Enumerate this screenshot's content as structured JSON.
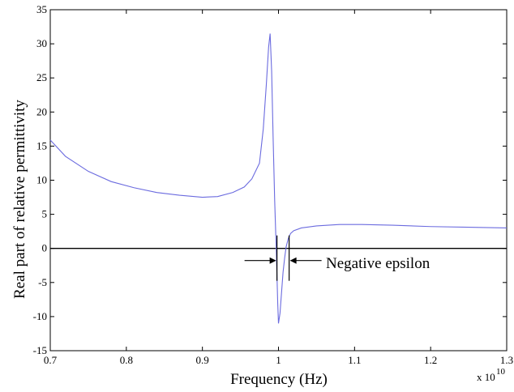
{
  "chart_data": {
    "type": "line",
    "title": "",
    "xlabel": "Frequency (Hz)",
    "ylabel": "Real part of relative permittivity",
    "x_multiplier_label": "x 10",
    "x_multiplier_exponent": "10",
    "xlim": [
      0.7,
      1.3
    ],
    "ylim": [
      -15,
      35
    ],
    "xticks": [
      0.7,
      0.8,
      0.9,
      1.0,
      1.1,
      1.2,
      1.3
    ],
    "xtick_labels": [
      "0.7",
      "0.8",
      "0.9",
      "1",
      "1.1",
      "1.2",
      "1.3"
    ],
    "yticks": [
      -15,
      -10,
      -5,
      0,
      5,
      10,
      15,
      20,
      25,
      30,
      35
    ],
    "ytick_labels": [
      "-15",
      "-10",
      "-5",
      "0",
      "5",
      "10",
      "15",
      "20",
      "25",
      "30",
      "35"
    ],
    "grid": false,
    "series": [
      {
        "color": "#6b6bdf",
        "x": [
          0.7,
          0.72,
          0.75,
          0.78,
          0.81,
          0.84,
          0.87,
          0.9,
          0.92,
          0.94,
          0.955,
          0.965,
          0.975,
          0.98,
          0.984,
          0.987,
          0.989,
          0.991,
          0.993,
          0.995,
          0.997,
          0.999,
          1.0,
          1.002,
          1.004,
          1.006,
          1.008,
          1.01,
          1.013,
          1.016,
          1.02,
          1.03,
          1.05,
          1.08,
          1.11,
          1.15,
          1.2,
          1.25,
          1.3
        ],
        "y": [
          15.9,
          13.5,
          11.3,
          9.8,
          8.9,
          8.2,
          7.8,
          7.5,
          7.6,
          8.2,
          9.0,
          10.2,
          12.5,
          17.5,
          24.0,
          29.5,
          31.5,
          26.0,
          16.0,
          7.0,
          0.0,
          -8.0,
          -11.0,
          -9.5,
          -6.5,
          -3.5,
          -1.5,
          0.2,
          1.5,
          2.2,
          2.6,
          3.0,
          3.3,
          3.5,
          3.5,
          3.4,
          3.2,
          3.1,
          3.0
        ]
      }
    ],
    "reference_line": {
      "y": 0,
      "color": "#000000"
    },
    "annotation": {
      "text": "Negative epsilon",
      "bracket_x": [
        0.998,
        1.014
      ]
    }
  }
}
